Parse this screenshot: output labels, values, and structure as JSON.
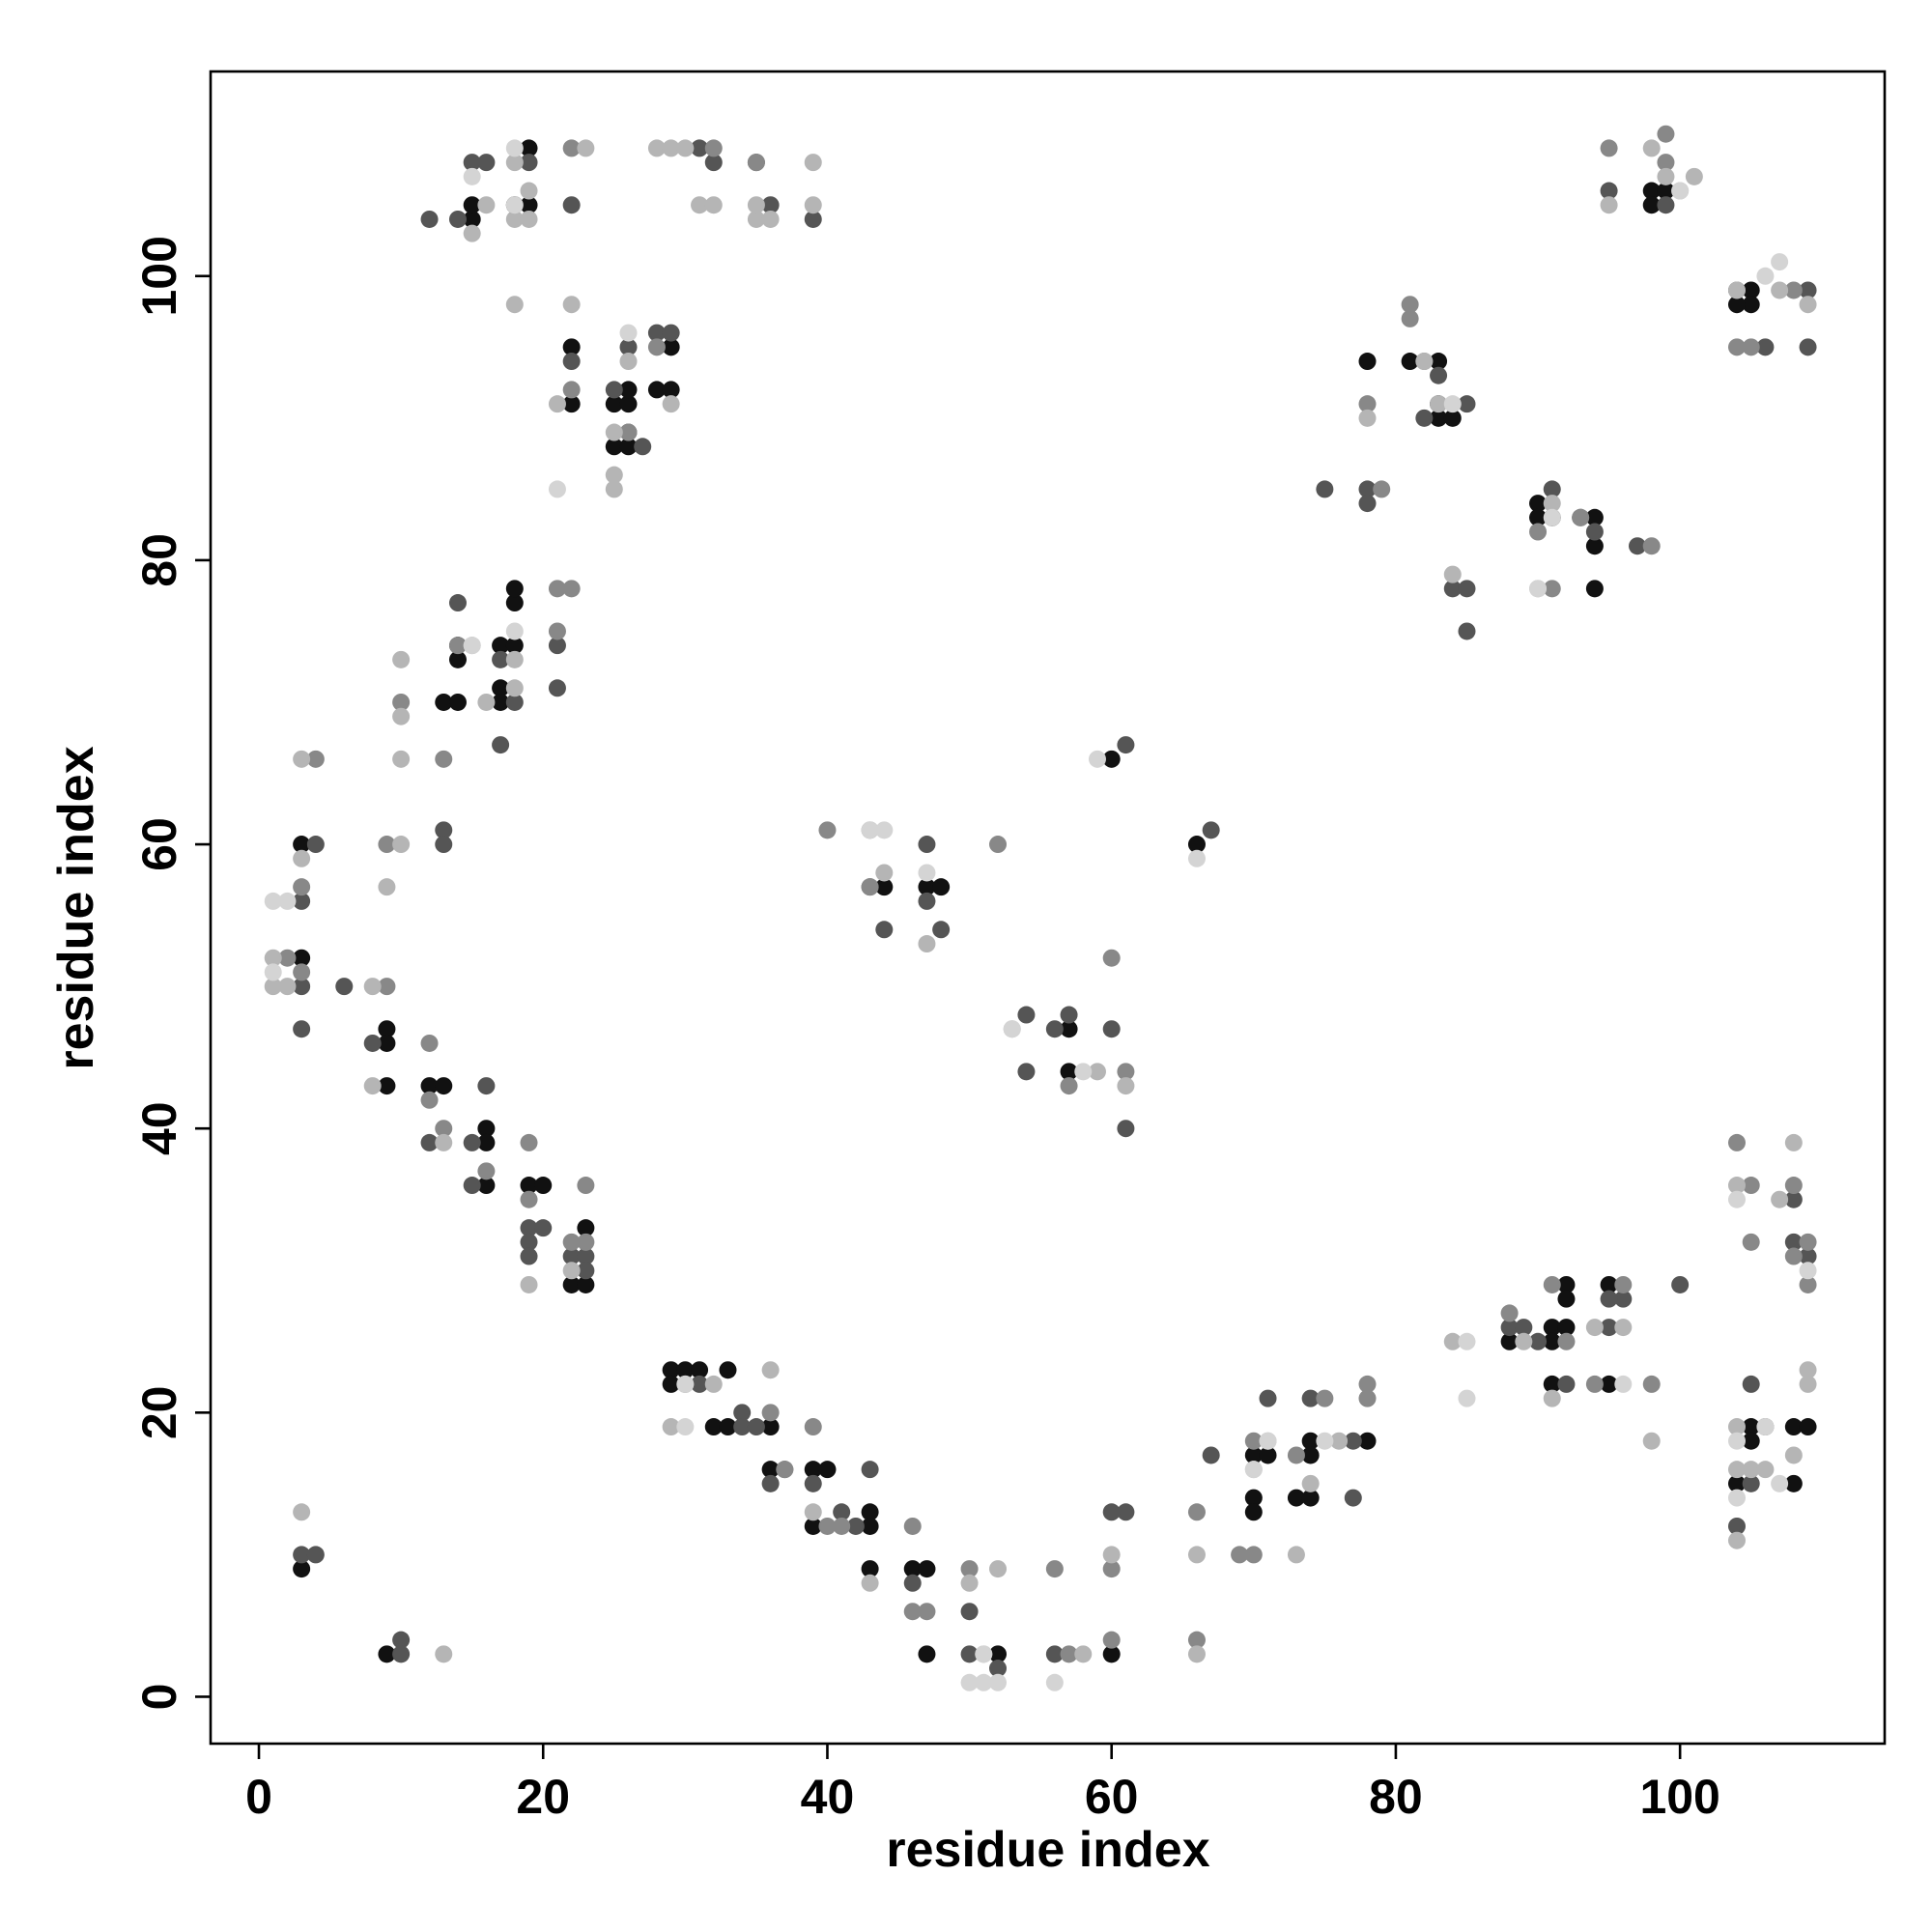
{
  "chart_data": {
    "type": "scatter",
    "x_label": "residue index",
    "y_label": "residue index",
    "xlim": [
      -3.4,
      114.4
    ],
    "ylim": [
      -3.3,
      114.4
    ],
    "xticks": [
      0,
      20,
      40,
      60,
      80,
      100
    ],
    "yticks": [
      0,
      20,
      40,
      60,
      80,
      100
    ],
    "series": [
      {
        "color": "#111111",
        "x": [
          3,
          9,
          9,
          9,
          9,
          12,
          13,
          16,
          16,
          16,
          19,
          20,
          23,
          22,
          23,
          29,
          29,
          30,
          31,
          33,
          32,
          33,
          36,
          36,
          39,
          40,
          39,
          43,
          43,
          43,
          46,
          47,
          47,
          52,
          60,
          70,
          70,
          70,
          73,
          74,
          74,
          74,
          78,
          71,
          88,
          91,
          91,
          92,
          92,
          92,
          91,
          95,
          95,
          104,
          105,
          105,
          108,
          109,
          108,
          3,
          3,
          14,
          14,
          13,
          14,
          17,
          18,
          17,
          17,
          18,
          18,
          15,
          15,
          18,
          19,
          19,
          22,
          22,
          25,
          26,
          26,
          25,
          26,
          28,
          29,
          29,
          44,
          47,
          48,
          57,
          57,
          60,
          66,
          78,
          81,
          83,
          83,
          83,
          84,
          90,
          90,
          91,
          94,
          94,
          94,
          98,
          99,
          98,
          105,
          105,
          104
        ],
        "y": [
          9,
          3,
          47,
          46,
          43,
          43,
          43,
          40,
          39,
          36,
          36,
          36,
          33,
          29,
          29,
          23,
          22,
          23,
          23,
          23,
          19,
          19,
          19,
          16,
          16,
          16,
          12,
          13,
          12,
          9,
          9,
          9,
          3,
          3,
          3,
          17,
          14,
          13,
          14,
          14,
          18,
          17,
          18,
          17,
          25,
          26,
          25,
          26,
          29,
          28,
          22,
          29,
          22,
          15,
          19,
          18,
          19,
          19,
          15,
          60,
          52,
          74,
          73,
          70,
          70,
          74,
          74,
          71,
          70,
          77,
          78,
          104,
          105,
          105,
          105,
          109,
          95,
          91,
          91,
          91,
          92,
          88,
          88,
          92,
          92,
          95,
          57,
          57,
          57,
          47,
          44,
          66,
          60,
          94,
          94,
          94,
          91,
          90,
          90,
          84,
          83,
          83,
          83,
          81,
          78,
          106,
          106,
          105,
          99,
          98,
          98
        ]
      },
      {
        "color": "#555555",
        "x": [
          3,
          4,
          10,
          10,
          3,
          3,
          6,
          8,
          12,
          15,
          15,
          16,
          19,
          19,
          19,
          20,
          22,
          23,
          23,
          31,
          34,
          34,
          35,
          37,
          36,
          39,
          41,
          43,
          42,
          46,
          50,
          50,
          52,
          56,
          61,
          60,
          67,
          71,
          74,
          77,
          77,
          88,
          89,
          90,
          92,
          95,
          96,
          95,
          100,
          105,
          104,
          105,
          106,
          108,
          108,
          109,
          3,
          4,
          13,
          13,
          14,
          17,
          17,
          21,
          21,
          18,
          15,
          16,
          14,
          19,
          12,
          22,
          22,
          25,
          26,
          28,
          29,
          26,
          27,
          31,
          32,
          35,
          36,
          39,
          43,
          44,
          47,
          47,
          48,
          54,
          54,
          57,
          56,
          61,
          67,
          60,
          61,
          75,
          78,
          78,
          82,
          83,
          85,
          84,
          85,
          85,
          91,
          93,
          94,
          97,
          95,
          99,
          104,
          106,
          109,
          109
        ],
        "y": [
          10,
          10,
          4,
          3,
          47,
          50,
          50,
          46,
          39,
          39,
          36,
          43,
          33,
          32,
          31,
          33,
          31,
          31,
          30,
          22,
          20,
          19,
          19,
          16,
          15,
          15,
          13,
          16,
          12,
          8,
          6,
          3,
          2,
          3,
          13,
          13,
          17,
          21,
          21,
          14,
          18,
          26,
          26,
          25,
          22,
          26,
          28,
          28,
          29,
          22,
          12,
          15,
          19,
          35,
          32,
          31,
          56,
          60,
          61,
          60,
          77,
          67,
          73,
          74,
          71,
          70,
          108,
          108,
          104,
          108,
          104,
          105,
          94,
          92,
          95,
          96,
          96,
          89,
          88,
          109,
          108,
          108,
          105,
          104,
          57,
          54,
          60,
          56,
          54,
          48,
          44,
          48,
          47,
          67,
          61,
          47,
          40,
          85,
          85,
          84,
          90,
          93,
          91,
          78,
          78,
          75,
          85,
          83,
          82,
          81,
          106,
          105,
          99,
          95,
          95,
          99
        ]
      },
      {
        "color": "#888888",
        "x": [
          3,
          2,
          3,
          9,
          9,
          12,
          12,
          13,
          16,
          19,
          19,
          22,
          23,
          23,
          30,
          36,
          37,
          39,
          40,
          41,
          46,
          47,
          46,
          50,
          56,
          57,
          60,
          60,
          66,
          66,
          69,
          70,
          70,
          73,
          75,
          78,
          78,
          88,
          91,
          92,
          94,
          96,
          98,
          104,
          105,
          105,
          108,
          108,
          109,
          109,
          4,
          10,
          13,
          14,
          21,
          22,
          21,
          22,
          22,
          26,
          28,
          32,
          35,
          95,
          99,
          99,
          104,
          105,
          108,
          81,
          81,
          78,
          79,
          82,
          90,
          91,
          93,
          98,
          40,
          43,
          43,
          52,
          61,
          60,
          57
        ],
        "y": [
          57,
          52,
          51,
          50,
          60,
          46,
          42,
          40,
          37,
          39,
          35,
          32,
          32,
          36,
          22,
          20,
          16,
          19,
          12,
          12,
          12,
          6,
          6,
          9,
          9,
          3,
          9,
          4,
          13,
          4,
          10,
          10,
          18,
          17,
          21,
          21,
          22,
          27,
          29,
          25,
          22,
          29,
          22,
          39,
          36,
          32,
          36,
          31,
          32,
          29,
          66,
          70,
          66,
          74,
          78,
          78,
          75,
          92,
          109,
          89,
          95,
          109,
          108,
          109,
          110,
          108,
          95,
          95,
          99,
          97,
          98,
          91,
          85,
          94,
          82,
          78,
          83,
          81,
          61,
          61,
          57,
          60,
          44,
          52,
          43
        ]
      },
      {
        "color": "#b5b5b5",
        "x": [
          3,
          13,
          2,
          3,
          3,
          10,
          9,
          8,
          8,
          10,
          10,
          10,
          13,
          19,
          22,
          29,
          32,
          36,
          39,
          43,
          50,
          51,
          52,
          58,
          60,
          66,
          66,
          70,
          71,
          73,
          74,
          76,
          84,
          89,
          91,
          94,
          96,
          98,
          104,
          104,
          104,
          105,
          104,
          107,
          106,
          108,
          108,
          109,
          109,
          1,
          1,
          16,
          18,
          18,
          15,
          18,
          22,
          21,
          25,
          25,
          25,
          26,
          29,
          28,
          29,
          30,
          31,
          32,
          35,
          35,
          36,
          39,
          39,
          15,
          16,
          18,
          18,
          19,
          19,
          23,
          44,
          47,
          53,
          59,
          61,
          95,
          98,
          99,
          100,
          101,
          104,
          107,
          109,
          78,
          84,
          90,
          91,
          83,
          82
        ],
        "y": [
          13,
          3,
          50,
          59,
          66,
          60,
          57,
          50,
          43,
          66,
          69,
          73,
          39,
          29,
          30,
          19,
          22,
          23,
          13,
          8,
          8,
          3,
          9,
          3,
          10,
          10,
          3,
          16,
          18,
          10,
          15,
          18,
          25,
          25,
          21,
          26,
          26,
          18,
          36,
          16,
          19,
          16,
          11,
          35,
          16,
          17,
          39,
          22,
          23,
          52,
          50,
          70,
          71,
          73,
          74,
          98,
          98,
          91,
          86,
          85,
          89,
          94,
          91,
          109,
          109,
          109,
          105,
          105,
          104,
          105,
          104,
          105,
          108,
          103,
          105,
          108,
          104,
          106,
          104,
          109,
          58,
          53,
          47,
          44,
          43,
          105,
          109,
          107,
          106,
          107,
          99,
          99,
          98,
          90,
          79,
          78,
          84,
          91,
          94
        ]
      },
      {
        "color": "#d4d4d4",
        "x": [
          1,
          2,
          1,
          15,
          18,
          21,
          26,
          44,
          47,
          30,
          56,
          50,
          51,
          52,
          59,
          66,
          70,
          71,
          75,
          85,
          85,
          90,
          96,
          104,
          104,
          104,
          107,
          106,
          107,
          106,
          109,
          15,
          18,
          18,
          30,
          58,
          53,
          84,
          91,
          100,
          51,
          43
        ],
        "y": [
          56,
          56,
          51,
          107,
          105,
          85,
          96,
          61,
          58,
          19,
          1,
          1,
          1,
          1,
          66,
          59,
          16,
          18,
          18,
          21,
          25,
          78,
          22,
          14,
          35,
          18,
          15,
          19,
          101,
          100,
          30,
          74,
          75,
          109,
          22,
          44,
          47,
          91,
          83,
          106,
          3,
          61
        ]
      }
    ]
  }
}
